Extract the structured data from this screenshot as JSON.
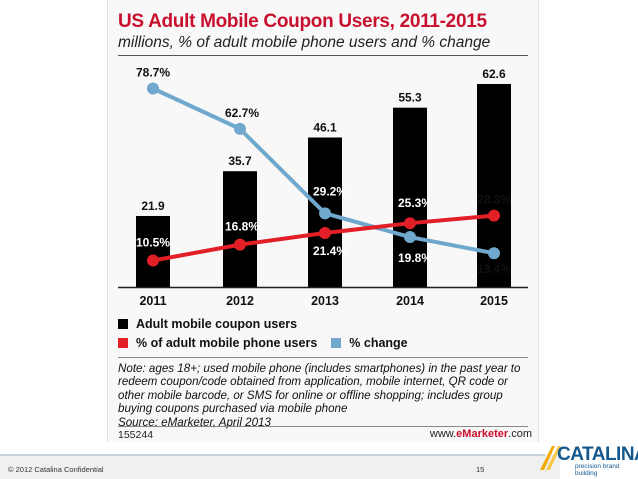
{
  "chart_data": {
    "type": "bar",
    "title": "US Adult Mobile Coupon Users, 2011-2015",
    "subtitle": "millions, % of adult mobile phone users and % change",
    "categories": [
      "2011",
      "2012",
      "2013",
      "2014",
      "2015"
    ],
    "series": [
      {
        "name": "Adult mobile coupon users",
        "type": "bar",
        "color": "#000000",
        "values": [
          21.9,
          35.7,
          46.1,
          55.3,
          62.6
        ],
        "labels": [
          "21.9",
          "35.7",
          "46.1",
          "55.3",
          "62.6"
        ]
      },
      {
        "name": "% of adult mobile phone users",
        "type": "line",
        "color": "#e21e26",
        "values": [
          10.5,
          16.8,
          21.4,
          25.3,
          28.3
        ],
        "labels": [
          "10.5%",
          "16.8%",
          "21.4%",
          "25.3%",
          "28.3%"
        ]
      },
      {
        "name": "% change",
        "type": "line",
        "color": "#6fa8cc",
        "values": [
          78.7,
          62.7,
          29.2,
          19.8,
          13.4
        ],
        "labels": [
          "78.7%",
          "62.7%",
          "29.2%",
          "19.8%",
          "13.4%"
        ]
      }
    ],
    "legend": "bottom"
  },
  "note": "Note: ages 18+; used mobile phone (includes smartphones) in the past year to redeem coupon/code obtained from application, mobile internet, QR code or other mobile barcode, or SMS for online or offline shopping; includes group buying coupons purchased via mobile phone",
  "source": "Source: eMarketer, April 2013",
  "chart_id": "155244",
  "site": {
    "prefix": "www.",
    "brand": "eMarketer",
    "suffix": ".com"
  },
  "footer": {
    "confidential": "© 2012 Catalina  Confidential",
    "page_number": "15"
  },
  "logo": {
    "name": "CATALINA",
    "tagline": "precision brand building"
  }
}
